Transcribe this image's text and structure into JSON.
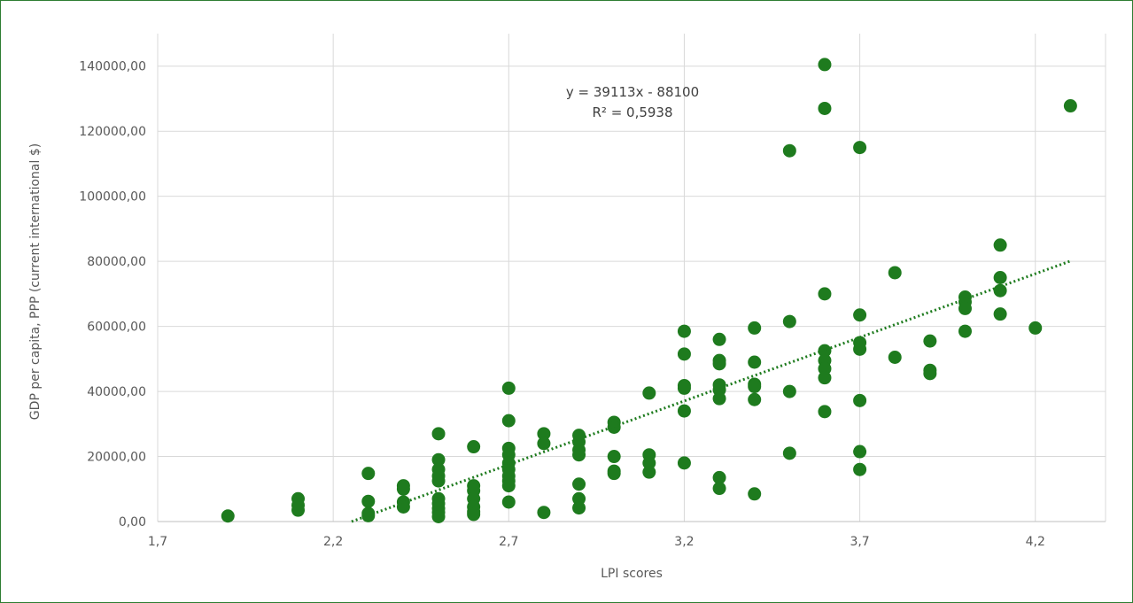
{
  "chart_data": {
    "type": "scatter",
    "title": "",
    "xlabel": "LPI scores",
    "ylabel": "GDP per capita, PPP (current international $)",
    "xlim": [
      1.7,
      4.4
    ],
    "ylim": [
      0,
      150000
    ],
    "x_ticks": [
      1.7,
      2.2,
      2.7,
      3.2,
      3.7,
      4.2
    ],
    "x_tick_labels": [
      "1,7",
      "2,2",
      "2,7",
      "3,2",
      "3,7",
      "4,2"
    ],
    "y_ticks": [
      0,
      20000,
      40000,
      60000,
      80000,
      100000,
      120000,
      140000
    ],
    "y_tick_labels": [
      "0,00",
      "20000,00",
      "40000,00",
      "60000,00",
      "80000,00",
      "100000,00",
      "120000,00",
      "140000,00"
    ],
    "grid": true,
    "marker_color": "#1e7b1e",
    "trendline": {
      "type": "linear",
      "slope": 39113,
      "intercept": -88100,
      "x_range": [
        2.25,
        4.3
      ],
      "style": "dotted",
      "color": "#1e7b1e",
      "equation": "y = 39113x - 88100",
      "r_squared": "R² = 0,5938"
    },
    "points": [
      [
        1.9,
        1700
      ],
      [
        2.1,
        7000
      ],
      [
        2.1,
        5000
      ],
      [
        2.1,
        3500
      ],
      [
        2.3,
        14800
      ],
      [
        2.3,
        6200
      ],
      [
        2.3,
        2500
      ],
      [
        2.3,
        1800
      ],
      [
        2.4,
        11000
      ],
      [
        2.4,
        10000
      ],
      [
        2.4,
        6000
      ],
      [
        2.4,
        4500
      ],
      [
        2.5,
        27000
      ],
      [
        2.5,
        19000
      ],
      [
        2.5,
        16000
      ],
      [
        2.5,
        14000
      ],
      [
        2.5,
        12500
      ],
      [
        2.5,
        7000
      ],
      [
        2.5,
        5500
      ],
      [
        2.5,
        4000
      ],
      [
        2.5,
        2800
      ],
      [
        2.5,
        1500
      ],
      [
        2.6,
        23000
      ],
      [
        2.6,
        11000
      ],
      [
        2.6,
        9500
      ],
      [
        2.6,
        7000
      ],
      [
        2.6,
        4500
      ],
      [
        2.6,
        3000
      ],
      [
        2.6,
        2200
      ],
      [
        2.7,
        41000
      ],
      [
        2.7,
        31000
      ],
      [
        2.7,
        22500
      ],
      [
        2.7,
        20500
      ],
      [
        2.7,
        18000
      ],
      [
        2.7,
        16000
      ],
      [
        2.7,
        14000
      ],
      [
        2.7,
        12500
      ],
      [
        2.7,
        11000
      ],
      [
        2.7,
        6000
      ],
      [
        2.8,
        27000
      ],
      [
        2.8,
        24000
      ],
      [
        2.8,
        2800
      ],
      [
        2.9,
        26500
      ],
      [
        2.9,
        24500
      ],
      [
        2.9,
        22000
      ],
      [
        2.9,
        20500
      ],
      [
        2.9,
        11500
      ],
      [
        2.9,
        7000
      ],
      [
        2.9,
        4200
      ],
      [
        3.0,
        30500
      ],
      [
        3.0,
        29000
      ],
      [
        3.0,
        20000
      ],
      [
        3.0,
        15500
      ],
      [
        3.0,
        14800
      ],
      [
        3.1,
        39500
      ],
      [
        3.1,
        20500
      ],
      [
        3.1,
        18000
      ],
      [
        3.1,
        15200
      ],
      [
        3.2,
        58500
      ],
      [
        3.2,
        51500
      ],
      [
        3.2,
        41800
      ],
      [
        3.2,
        41000
      ],
      [
        3.2,
        34000
      ],
      [
        3.2,
        18000
      ],
      [
        3.3,
        56000
      ],
      [
        3.3,
        49500
      ],
      [
        3.3,
        48500
      ],
      [
        3.3,
        42000
      ],
      [
        3.3,
        40500
      ],
      [
        3.3,
        37800
      ],
      [
        3.3,
        13500
      ],
      [
        3.3,
        10200
      ],
      [
        3.4,
        59500
      ],
      [
        3.4,
        49000
      ],
      [
        3.4,
        42200
      ],
      [
        3.4,
        41500
      ],
      [
        3.4,
        37500
      ],
      [
        3.4,
        8500
      ],
      [
        3.5,
        114000
      ],
      [
        3.5,
        61500
      ],
      [
        3.5,
        40000
      ],
      [
        3.5,
        21000
      ],
      [
        3.6,
        140500
      ],
      [
        3.6,
        127000
      ],
      [
        3.6,
        70000
      ],
      [
        3.6,
        52500
      ],
      [
        3.6,
        49500
      ],
      [
        3.6,
        47000
      ],
      [
        3.6,
        44200
      ],
      [
        3.6,
        33800
      ],
      [
        3.7,
        115000
      ],
      [
        3.7,
        63500
      ],
      [
        3.7,
        55000
      ],
      [
        3.7,
        53000
      ],
      [
        3.7,
        37200
      ],
      [
        3.7,
        21500
      ],
      [
        3.7,
        16000
      ],
      [
        3.8,
        76500
      ],
      [
        3.8,
        50500
      ],
      [
        3.9,
        55500
      ],
      [
        3.9,
        46500
      ],
      [
        3.9,
        45500
      ],
      [
        4.0,
        69000
      ],
      [
        4.0,
        67500
      ],
      [
        4.0,
        65500
      ],
      [
        4.0,
        58500
      ],
      [
        4.1,
        85000
      ],
      [
        4.1,
        75000
      ],
      [
        4.1,
        71000
      ],
      [
        4.1,
        63800
      ],
      [
        4.2,
        59500
      ],
      [
        4.3,
        127800
      ]
    ]
  }
}
